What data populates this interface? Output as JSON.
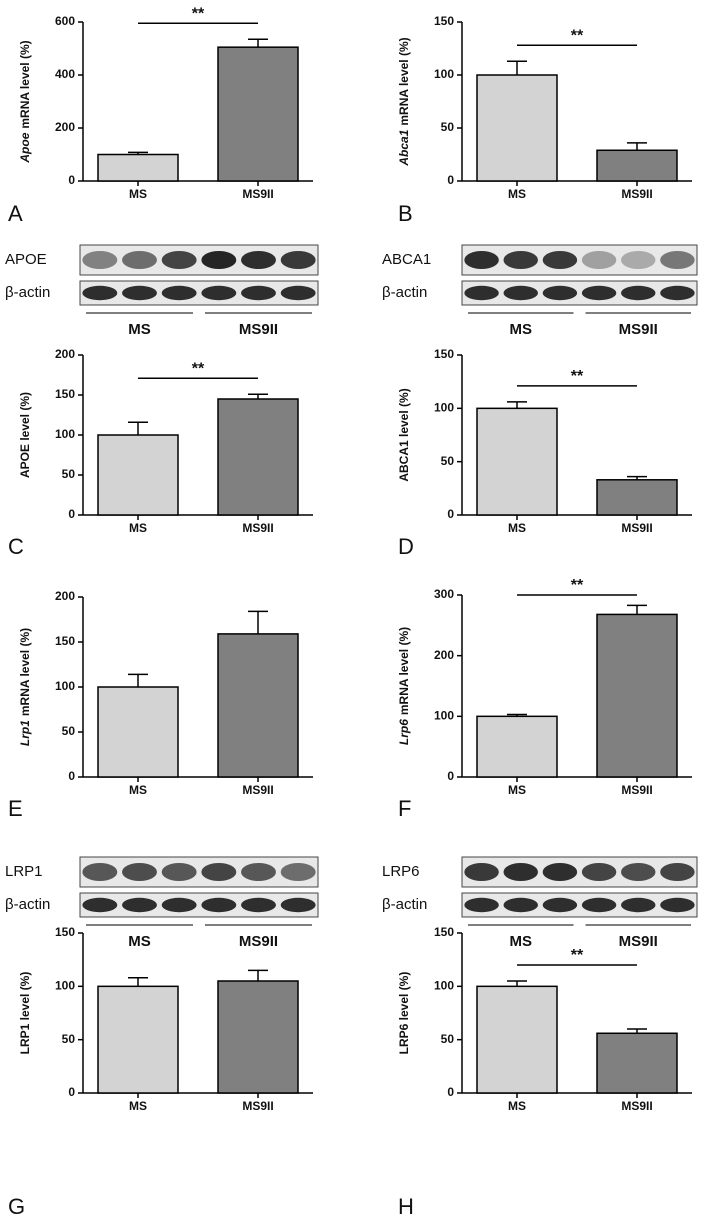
{
  "chart_data": [
    {
      "type": "bar",
      "panel": "A",
      "ylabel_gene": "Apoe",
      "ylabel": "mRNA level (%)",
      "categories": [
        "MS",
        "MS9II"
      ],
      "values": [
        100,
        505
      ],
      "errors": [
        8,
        30
      ],
      "colors": [
        "#d3d3d3",
        "#808080"
      ],
      "ylim": [
        0,
        600
      ],
      "yticks": [
        0,
        200,
        400,
        600
      ],
      "significance": "**"
    },
    {
      "type": "bar",
      "panel": "B",
      "ylabel_gene": "Abca1",
      "ylabel": "mRNA level (%)",
      "categories": [
        "MS",
        "MS9II"
      ],
      "values": [
        100,
        29
      ],
      "errors": [
        13,
        7
      ],
      "colors": [
        "#d3d3d3",
        "#808080"
      ],
      "ylim": [
        0,
        150
      ],
      "yticks": [
        0,
        50,
        100,
        150
      ],
      "significance": "**"
    },
    {
      "type": "bar",
      "panel": "C",
      "ylabel": "APOE level (%)",
      "categories": [
        "MS",
        "MS9II"
      ],
      "values": [
        100,
        145
      ],
      "errors": [
        16,
        6
      ],
      "colors": [
        "#d3d3d3",
        "#808080"
      ],
      "ylim": [
        0,
        200
      ],
      "yticks": [
        0,
        50,
        100,
        150,
        200
      ],
      "significance": "**"
    },
    {
      "type": "bar",
      "panel": "D",
      "ylabel": "ABCA1 level (%)",
      "categories": [
        "MS",
        "MS9II"
      ],
      "values": [
        100,
        33
      ],
      "errors": [
        6,
        3
      ],
      "colors": [
        "#d3d3d3",
        "#808080"
      ],
      "ylim": [
        0,
        150
      ],
      "yticks": [
        0,
        50,
        100,
        150
      ],
      "significance": "**"
    },
    {
      "type": "bar",
      "panel": "E",
      "ylabel_gene": "Lrp1",
      "ylabel": "mRNA level (%)",
      "categories": [
        "MS",
        "MS9II"
      ],
      "values": [
        100,
        159
      ],
      "errors": [
        14,
        25
      ],
      "colors": [
        "#d3d3d3",
        "#808080"
      ],
      "ylim": [
        0,
        200
      ],
      "yticks": [
        0,
        50,
        100,
        150,
        200
      ]
    },
    {
      "type": "bar",
      "panel": "F",
      "ylabel_gene": "Lrp6",
      "ylabel": "mRNA level (%)",
      "categories": [
        "MS",
        "MS9II"
      ],
      "values": [
        100,
        268
      ],
      "errors": [
        3,
        15
      ],
      "colors": [
        "#d3d3d3",
        "#808080"
      ],
      "ylim": [
        0,
        300
      ],
      "yticks": [
        0,
        100,
        200,
        300
      ],
      "significance": "**"
    },
    {
      "type": "bar",
      "panel": "G",
      "ylabel": "LRP1 level (%)",
      "categories": [
        "MS",
        "MS9II"
      ],
      "values": [
        100,
        105
      ],
      "errors": [
        8,
        10
      ],
      "colors": [
        "#d3d3d3",
        "#808080"
      ],
      "ylim": [
        0,
        150
      ],
      "yticks": [
        0,
        50,
        100,
        150
      ]
    },
    {
      "type": "bar",
      "panel": "H",
      "ylabel": "LRP6 level (%)",
      "categories": [
        "MS",
        "MS9II"
      ],
      "values": [
        100,
        56
      ],
      "errors": [
        5,
        4
      ],
      "colors": [
        "#d3d3d3",
        "#808080"
      ],
      "ylim": [
        0,
        150
      ],
      "yticks": [
        0,
        50,
        100,
        150
      ],
      "significance": "**"
    }
  ],
  "blots": [
    {
      "rows": [
        "APOE",
        "β-actin"
      ],
      "groups": [
        "MS",
        "MS9II"
      ]
    },
    {
      "rows": [
        "ABCA1",
        "β-actin"
      ],
      "groups": [
        "MS",
        "MS9II"
      ]
    },
    {
      "rows": [
        "LRP1",
        "β-actin"
      ],
      "groups": [
        "MS",
        "MS9II"
      ]
    },
    {
      "rows": [
        "LRP6",
        "β-actin"
      ],
      "groups": [
        "MS",
        "MS9II"
      ]
    }
  ]
}
